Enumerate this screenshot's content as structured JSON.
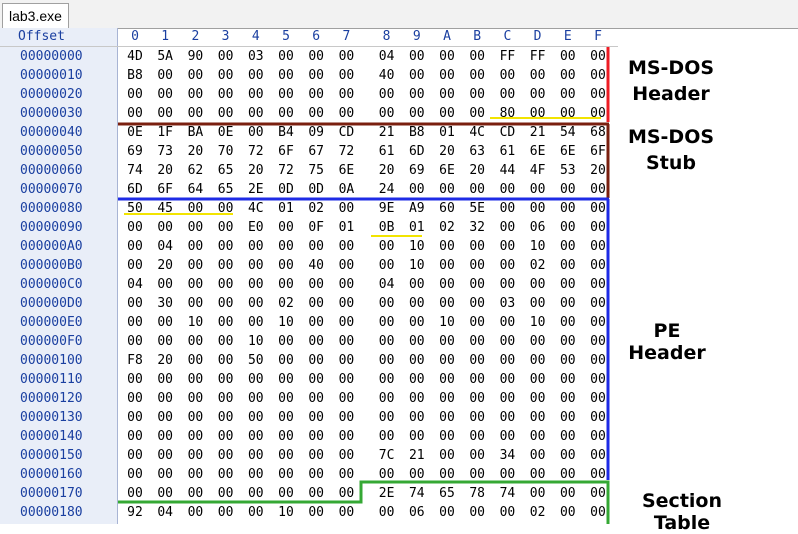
{
  "tab": {
    "label": "lab3.exe"
  },
  "header": {
    "offset_label": "Offset",
    "columns": [
      "0",
      "1",
      "2",
      "3",
      "4",
      "5",
      "6",
      "7",
      "8",
      "9",
      "A",
      "B",
      "C",
      "D",
      "E",
      "F"
    ]
  },
  "rows": [
    {
      "offset": "00000000",
      "bytes": [
        "4D",
        "5A",
        "90",
        "00",
        "03",
        "00",
        "00",
        "00",
        "04",
        "00",
        "00",
        "00",
        "FF",
        "FF",
        "00",
        "00"
      ]
    },
    {
      "offset": "00000010",
      "bytes": [
        "B8",
        "00",
        "00",
        "00",
        "00",
        "00",
        "00",
        "00",
        "40",
        "00",
        "00",
        "00",
        "00",
        "00",
        "00",
        "00"
      ]
    },
    {
      "offset": "00000020",
      "bytes": [
        "00",
        "00",
        "00",
        "00",
        "00",
        "00",
        "00",
        "00",
        "00",
        "00",
        "00",
        "00",
        "00",
        "00",
        "00",
        "00"
      ]
    },
    {
      "offset": "00000030",
      "bytes": [
        "00",
        "00",
        "00",
        "00",
        "00",
        "00",
        "00",
        "00",
        "00",
        "00",
        "00",
        "00",
        "80",
        "00",
        "00",
        "00"
      ]
    },
    {
      "offset": "00000040",
      "bytes": [
        "0E",
        "1F",
        "BA",
        "0E",
        "00",
        "B4",
        "09",
        "CD",
        "21",
        "B8",
        "01",
        "4C",
        "CD",
        "21",
        "54",
        "68"
      ]
    },
    {
      "offset": "00000050",
      "bytes": [
        "69",
        "73",
        "20",
        "70",
        "72",
        "6F",
        "67",
        "72",
        "61",
        "6D",
        "20",
        "63",
        "61",
        "6E",
        "6E",
        "6F"
      ]
    },
    {
      "offset": "00000060",
      "bytes": [
        "74",
        "20",
        "62",
        "65",
        "20",
        "72",
        "75",
        "6E",
        "20",
        "69",
        "6E",
        "20",
        "44",
        "4F",
        "53",
        "20"
      ]
    },
    {
      "offset": "00000070",
      "bytes": [
        "6D",
        "6F",
        "64",
        "65",
        "2E",
        "0D",
        "0D",
        "0A",
        "24",
        "00",
        "00",
        "00",
        "00",
        "00",
        "00",
        "00"
      ]
    },
    {
      "offset": "00000080",
      "bytes": [
        "50",
        "45",
        "00",
        "00",
        "4C",
        "01",
        "02",
        "00",
        "9E",
        "A9",
        "60",
        "5E",
        "00",
        "00",
        "00",
        "00"
      ]
    },
    {
      "offset": "00000090",
      "bytes": [
        "00",
        "00",
        "00",
        "00",
        "E0",
        "00",
        "0F",
        "01",
        "0B",
        "01",
        "02",
        "32",
        "00",
        "06",
        "00",
        "00"
      ]
    },
    {
      "offset": "000000A0",
      "bytes": [
        "00",
        "04",
        "00",
        "00",
        "00",
        "00",
        "00",
        "00",
        "00",
        "10",
        "00",
        "00",
        "00",
        "10",
        "00",
        "00"
      ]
    },
    {
      "offset": "000000B0",
      "bytes": [
        "00",
        "20",
        "00",
        "00",
        "00",
        "00",
        "40",
        "00",
        "00",
        "10",
        "00",
        "00",
        "00",
        "02",
        "00",
        "00"
      ]
    },
    {
      "offset": "000000C0",
      "bytes": [
        "04",
        "00",
        "00",
        "00",
        "00",
        "00",
        "00",
        "00",
        "04",
        "00",
        "00",
        "00",
        "00",
        "00",
        "00",
        "00"
      ]
    },
    {
      "offset": "000000D0",
      "bytes": [
        "00",
        "30",
        "00",
        "00",
        "00",
        "02",
        "00",
        "00",
        "00",
        "00",
        "00",
        "00",
        "03",
        "00",
        "00",
        "00"
      ]
    },
    {
      "offset": "000000E0",
      "bytes": [
        "00",
        "00",
        "10",
        "00",
        "00",
        "10",
        "00",
        "00",
        "00",
        "00",
        "10",
        "00",
        "00",
        "10",
        "00",
        "00"
      ]
    },
    {
      "offset": "000000F0",
      "bytes": [
        "00",
        "00",
        "00",
        "00",
        "10",
        "00",
        "00",
        "00",
        "00",
        "00",
        "00",
        "00",
        "00",
        "00",
        "00",
        "00"
      ]
    },
    {
      "offset": "00000100",
      "bytes": [
        "F8",
        "20",
        "00",
        "00",
        "50",
        "00",
        "00",
        "00",
        "00",
        "00",
        "00",
        "00",
        "00",
        "00",
        "00",
        "00"
      ]
    },
    {
      "offset": "00000110",
      "bytes": [
        "00",
        "00",
        "00",
        "00",
        "00",
        "00",
        "00",
        "00",
        "00",
        "00",
        "00",
        "00",
        "00",
        "00",
        "00",
        "00"
      ]
    },
    {
      "offset": "00000120",
      "bytes": [
        "00",
        "00",
        "00",
        "00",
        "00",
        "00",
        "00",
        "00",
        "00",
        "00",
        "00",
        "00",
        "00",
        "00",
        "00",
        "00"
      ]
    },
    {
      "offset": "00000130",
      "bytes": [
        "00",
        "00",
        "00",
        "00",
        "00",
        "00",
        "00",
        "00",
        "00",
        "00",
        "00",
        "00",
        "00",
        "00",
        "00",
        "00"
      ]
    },
    {
      "offset": "00000140",
      "bytes": [
        "00",
        "00",
        "00",
        "00",
        "00",
        "00",
        "00",
        "00",
        "00",
        "00",
        "00",
        "00",
        "00",
        "00",
        "00",
        "00"
      ]
    },
    {
      "offset": "00000150",
      "bytes": [
        "00",
        "00",
        "00",
        "00",
        "00",
        "00",
        "00",
        "00",
        "7C",
        "21",
        "00",
        "00",
        "34",
        "00",
        "00",
        "00"
      ]
    },
    {
      "offset": "00000160",
      "bytes": [
        "00",
        "00",
        "00",
        "00",
        "00",
        "00",
        "00",
        "00",
        "00",
        "00",
        "00",
        "00",
        "00",
        "00",
        "00",
        "00"
      ]
    },
    {
      "offset": "00000170",
      "bytes": [
        "00",
        "00",
        "00",
        "00",
        "00",
        "00",
        "00",
        "00",
        "2E",
        "74",
        "65",
        "78",
        "74",
        "00",
        "00",
        "00"
      ]
    },
    {
      "offset": "00000180",
      "bytes": [
        "92",
        "04",
        "00",
        "00",
        "00",
        "10",
        "00",
        "00",
        "00",
        "06",
        "00",
        "00",
        "00",
        "02",
        "00",
        "00"
      ]
    }
  ],
  "annotations": {
    "ms_dos_header": {
      "line1": "MS-DOS",
      "line2": "Header"
    },
    "ms_dos_stub": {
      "line1": "MS-DOS",
      "line2": "Stub"
    },
    "pe_header": {
      "text": "PE Header"
    },
    "section_table": {
      "text": "Section Table"
    }
  },
  "colors": {
    "ms_dos_header": "#ee1c24",
    "ms_dos_stub": "#7a1f0f",
    "pe_header": "#1e2be6",
    "section_table": "#35a834",
    "highlight_underline": "#f2e400",
    "offset_text": "#1a3fa0"
  }
}
